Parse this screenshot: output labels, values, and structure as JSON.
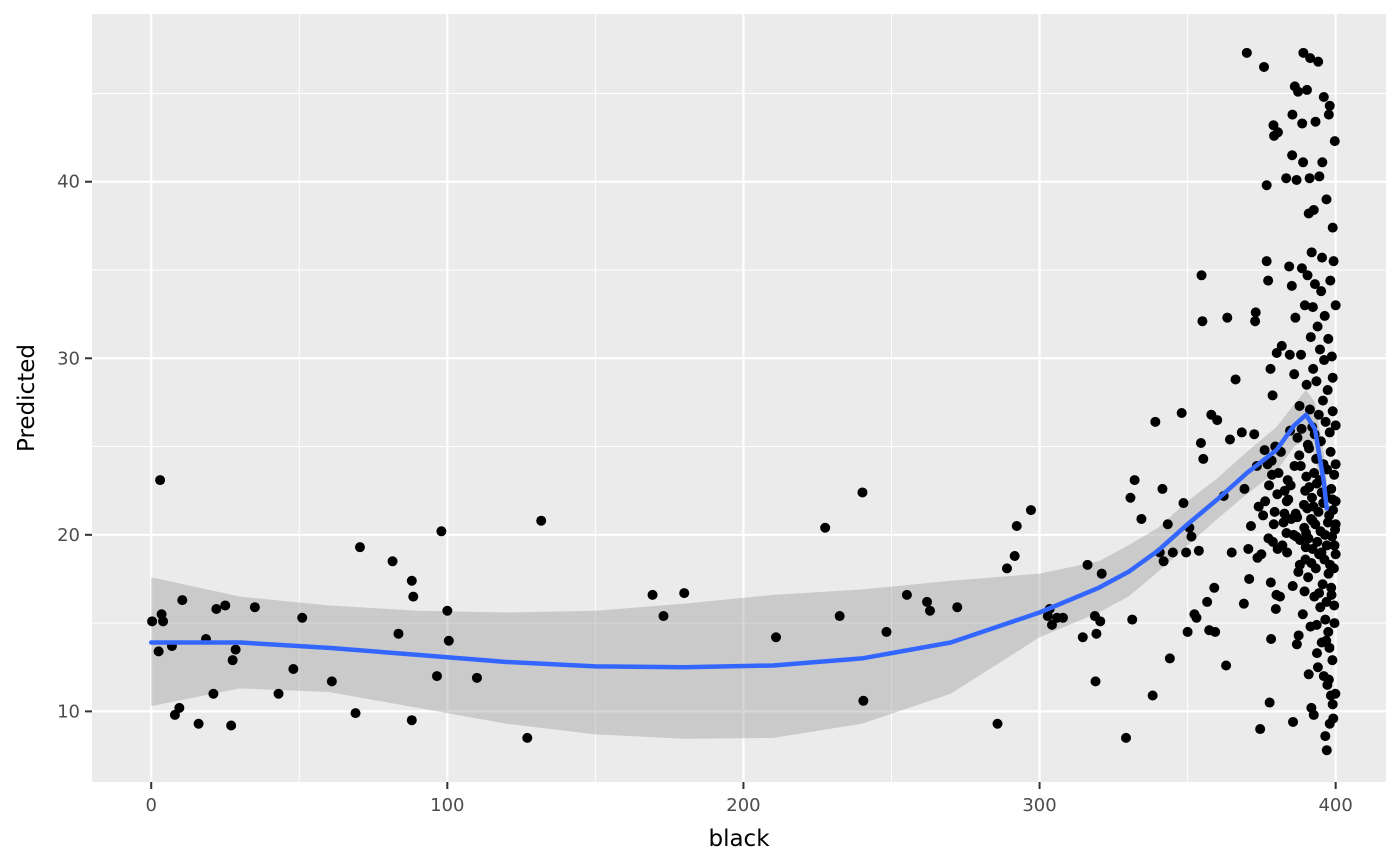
{
  "chart_data": {
    "type": "scatter",
    "title": "",
    "xlabel": "black",
    "ylabel": "Predicted",
    "xlim": [
      -20,
      417
    ],
    "ylim": [
      6,
      49.5
    ],
    "x_ticks": [
      0,
      100,
      200,
      300,
      400
    ],
    "y_ticks": [
      10,
      20,
      30,
      40
    ],
    "x_tick_labels": [
      "0",
      "100",
      "200",
      "300",
      "400"
    ],
    "y_tick_labels": [
      "10",
      "20",
      "30",
      "40"
    ],
    "grid": true,
    "legend": "none",
    "points": [
      [
        0.3,
        15.1
      ],
      [
        2.5,
        13.4
      ],
      [
        3,
        23.1
      ],
      [
        3.5,
        15.5
      ],
      [
        4,
        15.1
      ],
      [
        7,
        13.7
      ],
      [
        8,
        9.8
      ],
      [
        9.5,
        10.2
      ],
      [
        10.5,
        16.3
      ],
      [
        16,
        9.3
      ],
      [
        18.5,
        14.1
      ],
      [
        21,
        11.0
      ],
      [
        22,
        15.8
      ],
      [
        25,
        16.0
      ],
      [
        27,
        9.2
      ],
      [
        27.5,
        12.9
      ],
      [
        28.5,
        13.5
      ],
      [
        35,
        15.9
      ],
      [
        43,
        11.0
      ],
      [
        48,
        12.4
      ],
      [
        51,
        15.3
      ],
      [
        61,
        11.7
      ],
      [
        69,
        9.9
      ],
      [
        70.5,
        19.3
      ],
      [
        81.5,
        18.5
      ],
      [
        83.5,
        14.4
      ],
      [
        88,
        17.4
      ],
      [
        88,
        9.5
      ],
      [
        88.5,
        16.5
      ],
      [
        96.5,
        12.0
      ],
      [
        98,
        20.2
      ],
      [
        100,
        15.7
      ],
      [
        100.5,
        14.0
      ],
      [
        110,
        11.9
      ],
      [
        127,
        8.5
      ],
      [
        131.7,
        20.8
      ],
      [
        169.3,
        16.6
      ],
      [
        173,
        15.4
      ],
      [
        180,
        16.7
      ],
      [
        211,
        14.2
      ],
      [
        227.6,
        20.4
      ],
      [
        232.5,
        15.4
      ],
      [
        240.2,
        22.4
      ],
      [
        240.5,
        10.6
      ],
      [
        248.3,
        14.5
      ],
      [
        255.2,
        16.6
      ],
      [
        262,
        16.2
      ],
      [
        263,
        15.7
      ],
      [
        272.2,
        15.9
      ],
      [
        285.8,
        9.3
      ],
      [
        289,
        18.1
      ],
      [
        291.6,
        18.8
      ],
      [
        292.3,
        20.5
      ],
      [
        297.1,
        21.4
      ],
      [
        302.8,
        15.4
      ],
      [
        303.4,
        15.8
      ],
      [
        304.2,
        14.9
      ],
      [
        305.9,
        15.3
      ],
      [
        307.9,
        15.3
      ],
      [
        314.6,
        14.2
      ],
      [
        316.2,
        18.3
      ],
      [
        318.7,
        15.4
      ],
      [
        318.9,
        11.7
      ],
      [
        319.2,
        14.4
      ],
      [
        320.5,
        15.1
      ],
      [
        321,
        17.8
      ],
      [
        329.2,
        8.5
      ],
      [
        330.7,
        22.1
      ],
      [
        331.3,
        15.2
      ],
      [
        332.1,
        23.1
      ],
      [
        334.4,
        20.9
      ],
      [
        338.2,
        10.9
      ],
      [
        339.1,
        26.4
      ],
      [
        340.6,
        19.0
      ],
      [
        341.5,
        22.6
      ],
      [
        341.9,
        18.5
      ],
      [
        343.3,
        20.6
      ],
      [
        344,
        13.0
      ],
      [
        345,
        19.0
      ],
      [
        348,
        26.9
      ],
      [
        348.6,
        21.8
      ],
      [
        349.5,
        19.0
      ],
      [
        350,
        14.5
      ],
      [
        350.6,
        20.4
      ],
      [
        351.3,
        19.9
      ],
      [
        352.3,
        15.5
      ],
      [
        353,
        15.3
      ],
      [
        353.8,
        19.1
      ],
      [
        354.5,
        25.2
      ],
      [
        354.7,
        34.7
      ],
      [
        355,
        32.1
      ],
      [
        355.3,
        24.3
      ],
      [
        356.6,
        16.2
      ],
      [
        357.3,
        14.6
      ],
      [
        358,
        26.8
      ],
      [
        359,
        17.0
      ],
      [
        359.3,
        14.5
      ],
      [
        360,
        26.5
      ],
      [
        362.2,
        22.2
      ],
      [
        363,
        12.6
      ],
      [
        363.4,
        32.3
      ],
      [
        364.3,
        25.4
      ],
      [
        364.9,
        19.0
      ],
      [
        366.2,
        28.8
      ],
      [
        368.3,
        25.8
      ],
      [
        369,
        16.1
      ],
      [
        369.2,
        22.6
      ],
      [
        370,
        47.3
      ],
      [
        370.5,
        19.2
      ],
      [
        370.8,
        17.5
      ],
      [
        371.4,
        20.5
      ],
      [
        372.5,
        25.7
      ],
      [
        372.8,
        32.1
      ],
      [
        373,
        32.6
      ],
      [
        373.4,
        23.9
      ],
      [
        373.6,
        18.7
      ],
      [
        374,
        21.6
      ],
      [
        374.5,
        9.0
      ],
      [
        374.9,
        18.9
      ],
      [
        375.5,
        21.1
      ],
      [
        375.8,
        46.5
      ],
      [
        376,
        24.8
      ],
      [
        376.2,
        21.9
      ],
      [
        376.7,
        35.5
      ],
      [
        376.7,
        39.8
      ],
      [
        377,
        24.0
      ],
      [
        377.2,
        34.4
      ],
      [
        377.3,
        19.8
      ],
      [
        377.5,
        22.8
      ],
      [
        377.7,
        10.5
      ],
      [
        378,
        29.4
      ],
      [
        378.1,
        17.3
      ],
      [
        378.2,
        14.1
      ],
      [
        378.4,
        24.2
      ],
      [
        378.5,
        23.4
      ],
      [
        378.7,
        27.9
      ],
      [
        378.8,
        19.6
      ],
      [
        379,
        43.2
      ],
      [
        379.1,
        20.6
      ],
      [
        379.2,
        42.6
      ],
      [
        379.4,
        21.3
      ],
      [
        379.6,
        25.0
      ],
      [
        379.8,
        15.8
      ],
      [
        380,
        16.6
      ],
      [
        380.1,
        30.3
      ],
      [
        380.3,
        22.3
      ],
      [
        380.4,
        19.2
      ],
      [
        380.5,
        42.8
      ],
      [
        380.7,
        23.5
      ],
      [
        381.2,
        16.5
      ],
      [
        381.5,
        24.7
      ],
      [
        381.8,
        30.7
      ],
      [
        382,
        19.4
      ],
      [
        382.4,
        20.7
      ],
      [
        382.7,
        21.2
      ],
      [
        382.8,
        22.5
      ],
      [
        383.3,
        40.2
      ],
      [
        383.4,
        20.1
      ],
      [
        383.5,
        21.9
      ],
      [
        383.6,
        19.0
      ],
      [
        383.8,
        23.1
      ],
      [
        384,
        22.0
      ],
      [
        384.3,
        35.2
      ],
      [
        384.5,
        30.2
      ],
      [
        384.6,
        25.9
      ],
      [
        384.8,
        22.8
      ],
      [
        385,
        20.9
      ],
      [
        385.2,
        34.1
      ],
      [
        385.3,
        41.5
      ],
      [
        385.4,
        43.8
      ],
      [
        385.5,
        17.1
      ],
      [
        385.6,
        9.4
      ],
      [
        385.8,
        20.0
      ],
      [
        386,
        29.1
      ],
      [
        386.1,
        23.9
      ],
      [
        386.2,
        45.4
      ],
      [
        386.4,
        32.3
      ],
      [
        386.5,
        21.2
      ],
      [
        386.7,
        19.9
      ],
      [
        386.8,
        40.1
      ],
      [
        386.9,
        13.8
      ],
      [
        387,
        21.0
      ],
      [
        387.1,
        25.5
      ],
      [
        387.3,
        45.1
      ],
      [
        387.4,
        17.9
      ],
      [
        387.5,
        14.3
      ],
      [
        387.7,
        24.5
      ],
      [
        387.8,
        27.3
      ],
      [
        387.9,
        18.3
      ],
      [
        388,
        19.7
      ],
      [
        388.2,
        23.9
      ],
      [
        388.3,
        30.2
      ],
      [
        388.5,
        26.0
      ],
      [
        388.6,
        35.1
      ],
      [
        388.7,
        43.3
      ],
      [
        388.9,
        15.5
      ],
      [
        389,
        41.1
      ],
      [
        389.1,
        47.3
      ],
      [
        389.3,
        21.7
      ],
      [
        389.4,
        20.4
      ],
      [
        389.5,
        16.8
      ],
      [
        389.6,
        33.0
      ],
      [
        389.7,
        22.5
      ],
      [
        389.8,
        18.6
      ],
      [
        389.9,
        19.3
      ],
      [
        390,
        20.1
      ],
      [
        390.1,
        23.3
      ],
      [
        390.2,
        28.5
      ],
      [
        390.3,
        45.2
      ],
      [
        390.4,
        21.5
      ],
      [
        390.5,
        34.7
      ],
      [
        390.6,
        25.1
      ],
      [
        390.7,
        17.6
      ],
      [
        390.8,
        19.8
      ],
      [
        390.9,
        38.2
      ],
      [
        391,
        24.9
      ],
      [
        391.1,
        22.7
      ],
      [
        391.2,
        40.2
      ],
      [
        391.3,
        27.1
      ],
      [
        391.4,
        47.0
      ],
      [
        391.5,
        14.8
      ],
      [
        391.6,
        31.2
      ],
      [
        391.7,
        20.9
      ],
      [
        391.8,
        18.4
      ],
      [
        391.9,
        36.0
      ],
      [
        392,
        22.1
      ],
      [
        392.1,
        26.1
      ],
      [
        392.2,
        19.2
      ],
      [
        392.3,
        32.9
      ],
      [
        392.4,
        29.4
      ],
      [
        392.5,
        21.6
      ],
      [
        392.6,
        38.4
      ],
      [
        392.7,
        23.5
      ],
      [
        392.8,
        16.5
      ],
      [
        392.9,
        25.7
      ],
      [
        393,
        34.2
      ],
      [
        393.1,
        20.6
      ],
      [
        393.2,
        43.4
      ],
      [
        393.3,
        18.1
      ],
      [
        393.4,
        24.3
      ],
      [
        393.5,
        28.7
      ],
      [
        393.6,
        22.9
      ],
      [
        393.7,
        13.3
      ],
      [
        393.8,
        19.6
      ],
      [
        393.9,
        31.8
      ],
      [
        394,
        12.5
      ],
      [
        394.1,
        46.8
      ],
      [
        394.2,
        21.3
      ],
      [
        394.3,
        26.8
      ],
      [
        394.4,
        18.9
      ],
      [
        394.5,
        40.3
      ],
      [
        394.6,
        23.1
      ],
      [
        394.7,
        30.5
      ],
      [
        394.8,
        15.9
      ],
      [
        394.9,
        20.2
      ],
      [
        395,
        25.3
      ],
      [
        395.1,
        33.8
      ],
      [
        395.2,
        19.0
      ],
      [
        395.3,
        22.4
      ],
      [
        395.4,
        35.7
      ],
      [
        395.5,
        41.1
      ],
      [
        395.6,
        17.2
      ],
      [
        395.7,
        27.6
      ],
      [
        395.8,
        21.8
      ],
      [
        395.9,
        24.0
      ],
      [
        396,
        44.8
      ],
      [
        396.1,
        29.9
      ],
      [
        396.2,
        18.6
      ],
      [
        396.3,
        32.4
      ],
      [
        396.4,
        20.0
      ],
      [
        396.5,
        15.2
      ],
      [
        396.6,
        26.4
      ],
      [
        396.7,
        22.2
      ],
      [
        396.8,
        14.0
      ],
      [
        396.9,
        39.0
      ],
      [
        397,
        19.4
      ],
      [
        397.1,
        23.7
      ],
      [
        397.2,
        11.5
      ],
      [
        397.3,
        28.2
      ],
      [
        397.4,
        20.7
      ],
      [
        397.5,
        31.1
      ],
      [
        397.6,
        17.8
      ],
      [
        397.7,
        43.8
      ],
      [
        397.8,
        21.1
      ],
      [
        397.9,
        13.6
      ],
      [
        398,
        25.8
      ],
      [
        398.1,
        18.3
      ],
      [
        398.2,
        34.4
      ],
      [
        398.3,
        24.7
      ],
      [
        398.4,
        10.9
      ],
      [
        398.5,
        22.6
      ],
      [
        398.6,
        16.6
      ],
      [
        398.7,
        30.1
      ],
      [
        398.8,
        19.9
      ],
      [
        398.9,
        12.9
      ],
      [
        399,
        27.0
      ],
      [
        399.1,
        21.4
      ],
      [
        399.2,
        9.6
      ],
      [
        399.3,
        35.5
      ],
      [
        399.4,
        18.1
      ],
      [
        399.5,
        23.4
      ],
      [
        399.6,
        15.0
      ],
      [
        399.7,
        42.3
      ],
      [
        399.8,
        20.3
      ],
      [
        399.9,
        11.0
      ],
      [
        400,
        26.2
      ],
      [
        397,
        7.8
      ],
      [
        396.5,
        8.6
      ],
      [
        398,
        9.3
      ],
      [
        399,
        10.4
      ],
      [
        396,
        12.0
      ],
      [
        397.5,
        14.5
      ],
      [
        399.5,
        16.0
      ],
      [
        398.5,
        17.0
      ],
      [
        400,
        18.9
      ],
      [
        400,
        20.6
      ],
      [
        399,
        22.0
      ],
      [
        400,
        24.0
      ],
      [
        399,
        28.9
      ],
      [
        400,
        33.0
      ],
      [
        399,
        37.4
      ],
      [
        398,
        44.3
      ],
      [
        400,
        21.9
      ],
      [
        399.6,
        19.4
      ],
      [
        396.9,
        16.2
      ],
      [
        397.7,
        11.8
      ],
      [
        392.6,
        9.8
      ],
      [
        391.8,
        10.2
      ],
      [
        390.9,
        12.1
      ],
      [
        393.6,
        14.9
      ],
      [
        394.4,
        16.7
      ],
      [
        395.3,
        13.9
      ],
      [
        392.2,
        20.8
      ]
    ],
    "smooth": {
      "x": [
        0,
        30,
        60,
        90,
        120,
        150,
        180,
        210,
        240,
        270,
        300,
        320,
        330,
        340,
        350,
        360,
        370,
        380,
        386,
        390,
        393,
        396,
        397
      ],
      "y": [
        13.9,
        13.9,
        13.6,
        13.2,
        12.8,
        12.55,
        12.5,
        12.6,
        13.0,
        13.9,
        15.6,
        17.0,
        17.9,
        19.1,
        20.6,
        22.0,
        23.5,
        24.8,
        26.2,
        26.8,
        26.0,
        23.0,
        21.5
      ],
      "lower": [
        10.3,
        11.3,
        11.1,
        10.2,
        9.3,
        8.7,
        8.45,
        8.5,
        9.3,
        11.0,
        14.2,
        15.6,
        16.5,
        17.9,
        19.4,
        20.9,
        22.3,
        23.6,
        25.0,
        25.4,
        24.5,
        21.5,
        20.0
      ],
      "upper": [
        17.6,
        16.5,
        16.0,
        15.7,
        15.6,
        15.7,
        16.1,
        16.6,
        16.9,
        17.4,
        17.8,
        18.5,
        19.4,
        20.4,
        21.9,
        23.2,
        24.7,
        26.1,
        27.4,
        28.2,
        27.5,
        24.6,
        23.1
      ]
    },
    "colors": {
      "panel": "#ebebeb",
      "grid": "#ffffff",
      "points": "#000000",
      "line": "#3366ff",
      "band": "#999999"
    }
  }
}
